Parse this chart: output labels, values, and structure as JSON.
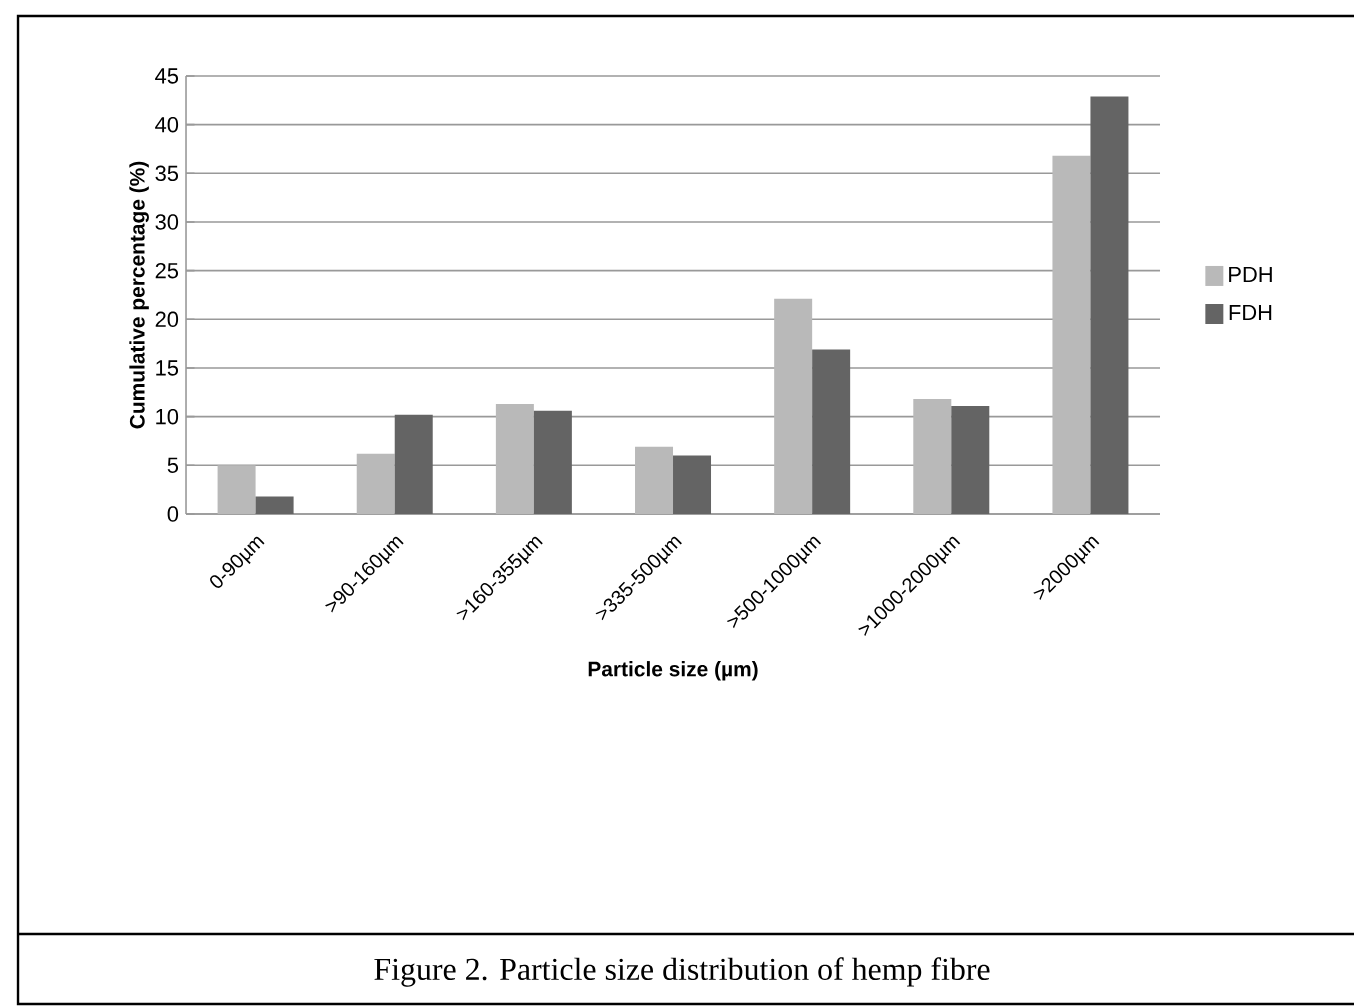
{
  "chart_data": {
    "type": "bar",
    "categories": [
      "0-90µm",
      ">90-160µm",
      ">160-355µm",
      ">335-500µm",
      ">500-1000µm",
      ">1000-2000µm",
      ">2000µm"
    ],
    "series": [
      {
        "name": "PDH",
        "color": "#b9b9b9",
        "values": [
          5.0,
          6.2,
          11.3,
          6.9,
          22.1,
          11.8,
          36.8
        ]
      },
      {
        "name": "FDH",
        "color": "#646464",
        "values": [
          1.8,
          10.2,
          10.6,
          6.0,
          16.9,
          11.1,
          42.9
        ]
      }
    ],
    "xlabel": "Particle size (µm)",
    "ylabel": "Cumulative percentage (%)",
    "ylim": [
      0,
      45
    ],
    "yticks": [
      0,
      5,
      10,
      15,
      20,
      25,
      30,
      35,
      40,
      45
    ],
    "grid": "y",
    "legend": "right",
    "annotations": [
      "Figure 2. Particle size distribution of hemp fibre"
    ]
  }
}
